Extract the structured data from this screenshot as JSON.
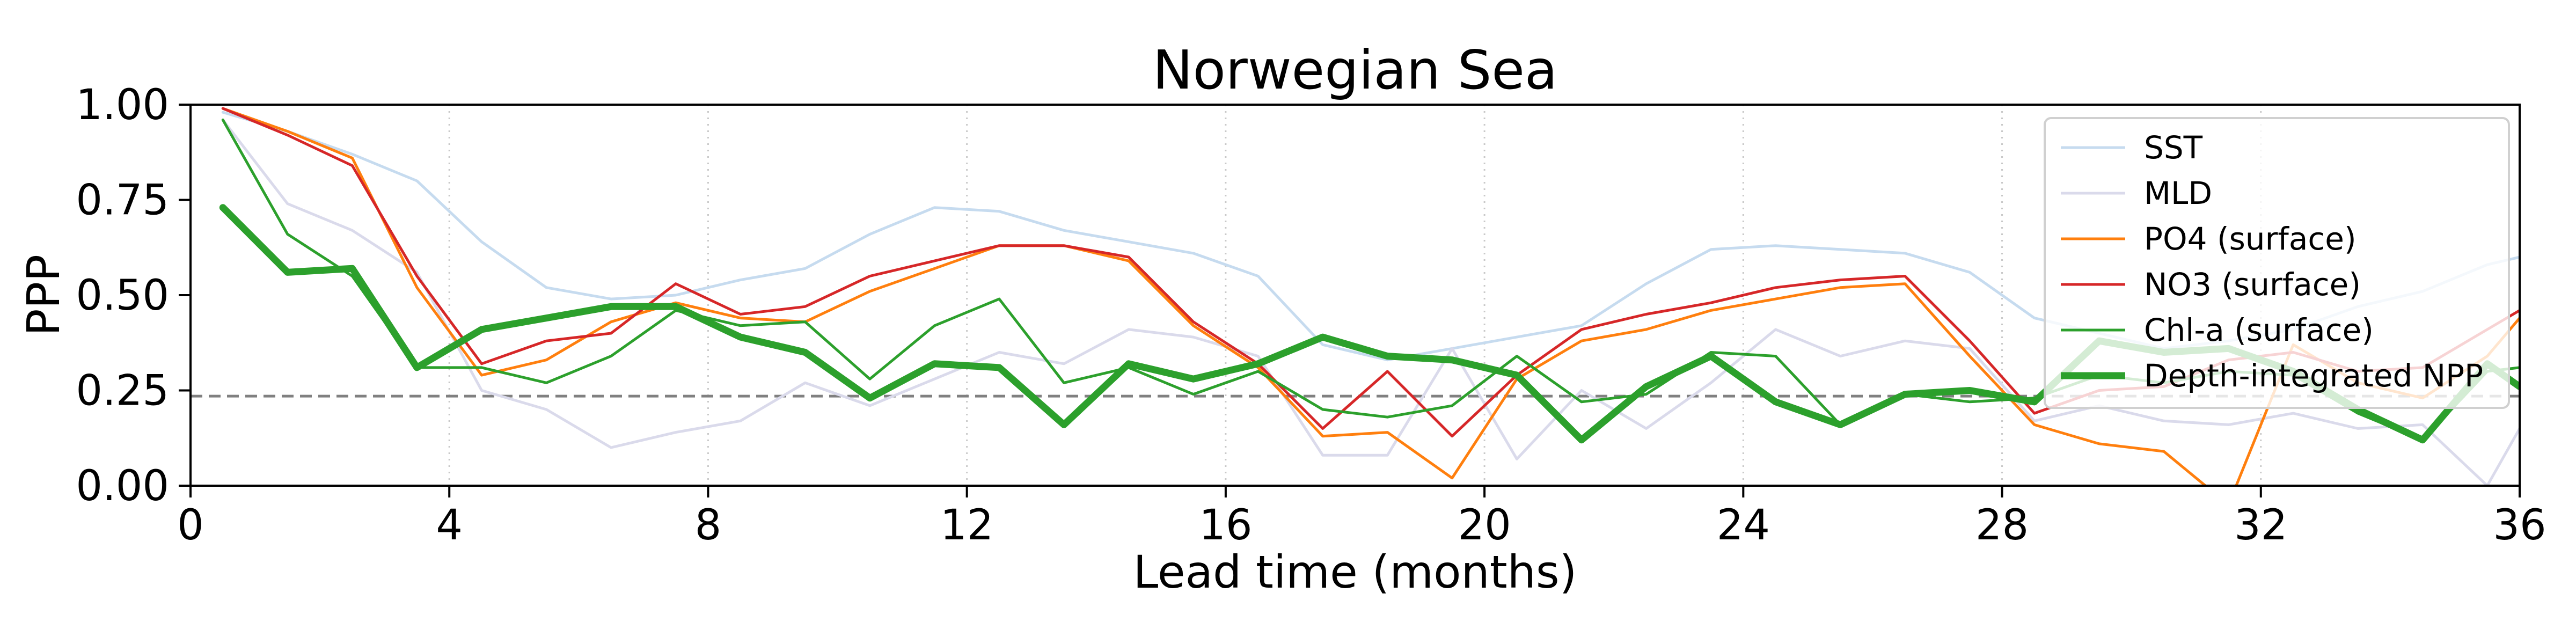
{
  "chart_data": {
    "type": "line",
    "title": "Norwegian Sea",
    "xlabel": "Lead time (months)",
    "ylabel": "PPP",
    "xlim": [
      0,
      36
    ],
    "ylim": [
      0,
      1
    ],
    "xticks": [
      0,
      4,
      8,
      12,
      16,
      20,
      24,
      28,
      32,
      36
    ],
    "yticks": [
      0,
      0.25,
      0.5,
      0.75,
      1
    ],
    "xtick_labels": [
      "0",
      "4",
      "8",
      "12",
      "16",
      "20",
      "24",
      "28",
      "32",
      "36"
    ],
    "ytick_labels": [
      "0.00",
      "0.25",
      "0.50",
      "0.75",
      "1.00"
    ],
    "grid": "x-dotted",
    "legend_position": "upper-right",
    "reference_line": {
      "y": 0.235,
      "style": "dashed",
      "color": "#808080"
    },
    "x": [
      0.5,
      1.5,
      2.5,
      3.5,
      4.5,
      5.5,
      6.5,
      7.5,
      8.5,
      9.5,
      10.5,
      11.5,
      12.5,
      13.5,
      14.5,
      15.5,
      16.5,
      17.5,
      18.5,
      19.5,
      20.5,
      21.5,
      22.5,
      23.5,
      24.5,
      25.5,
      26.5,
      27.5,
      28.5,
      29.5,
      30.5,
      31.5,
      32.5,
      33.5,
      34.5,
      35.5,
      36.0
    ],
    "series": [
      {
        "name": "SST",
        "color": "#c6dbef",
        "width": 5,
        "values": [
          0.98,
          0.93,
          0.87,
          0.8,
          0.64,
          0.52,
          0.49,
          0.5,
          0.54,
          0.57,
          0.66,
          0.73,
          0.72,
          0.67,
          0.64,
          0.61,
          0.55,
          0.37,
          0.33,
          0.36,
          0.39,
          0.42,
          0.53,
          0.62,
          0.63,
          0.62,
          0.61,
          0.56,
          0.44,
          0.4,
          0.36,
          0.38,
          0.41,
          0.47,
          0.51,
          0.58,
          0.6
        ]
      },
      {
        "name": "MLD",
        "color": "#dadaeb",
        "width": 5,
        "values": [
          0.96,
          0.74,
          0.67,
          0.56,
          0.25,
          0.2,
          0.1,
          0.14,
          0.17,
          0.27,
          0.21,
          0.28,
          0.35,
          0.32,
          0.41,
          0.39,
          0.34,
          0.08,
          0.08,
          0.36,
          0.07,
          0.25,
          0.15,
          0.27,
          0.41,
          0.34,
          0.38,
          0.36,
          0.17,
          0.21,
          0.17,
          0.16,
          0.19,
          0.15,
          0.16,
          0.0,
          0.15
        ]
      },
      {
        "name": "PO4 (surface)",
        "color": "#ff7f0e",
        "width": 5,
        "values": [
          0.99,
          0.93,
          0.86,
          0.52,
          0.29,
          0.33,
          0.43,
          0.48,
          0.44,
          0.43,
          0.51,
          0.57,
          0.63,
          0.63,
          0.59,
          0.42,
          0.31,
          0.13,
          0.14,
          0.02,
          0.28,
          0.38,
          0.41,
          0.46,
          0.49,
          0.52,
          0.53,
          0.34,
          0.16,
          0.11,
          0.09,
          -0.05,
          0.37,
          0.27,
          0.23,
          0.34,
          0.44
        ]
      },
      {
        "name": "NO3 (surface)",
        "color": "#d62728",
        "width": 5,
        "values": [
          0.99,
          0.92,
          0.84,
          0.55,
          0.32,
          0.38,
          0.4,
          0.53,
          0.45,
          0.47,
          0.55,
          0.59,
          0.63,
          0.63,
          0.6,
          0.43,
          0.32,
          0.15,
          0.3,
          0.13,
          0.29,
          0.41,
          0.45,
          0.48,
          0.52,
          0.54,
          0.55,
          0.38,
          0.19,
          0.25,
          0.26,
          0.33,
          0.35,
          0.3,
          0.31,
          0.41,
          0.46
        ]
      },
      {
        "name": "Chl-a (surface)",
        "color": "#2ca02c",
        "width": 5,
        "values": [
          0.96,
          0.66,
          0.55,
          0.31,
          0.31,
          0.27,
          0.34,
          0.46,
          0.42,
          0.43,
          0.28,
          0.42,
          0.49,
          0.27,
          0.31,
          0.24,
          0.3,
          0.2,
          0.18,
          0.21,
          0.34,
          0.22,
          0.24,
          0.35,
          0.34,
          0.16,
          0.24,
          0.22,
          0.23,
          0.29,
          0.27,
          0.3,
          0.29,
          0.19,
          0.12,
          0.3,
          0.31
        ]
      },
      {
        "name": "Depth-integrated NPP",
        "color": "#2ca02c",
        "width": 13,
        "values": [
          0.73,
          0.56,
          0.57,
          0.31,
          0.41,
          0.44,
          0.47,
          0.47,
          0.39,
          0.35,
          0.23,
          0.32,
          0.31,
          0.16,
          0.32,
          0.28,
          0.32,
          0.39,
          0.34,
          0.33,
          0.29,
          0.12,
          0.26,
          0.34,
          0.22,
          0.16,
          0.24,
          0.25,
          0.22,
          0.38,
          0.35,
          0.36,
          0.3,
          0.2,
          0.12,
          0.32,
          0.26
        ]
      }
    ]
  }
}
